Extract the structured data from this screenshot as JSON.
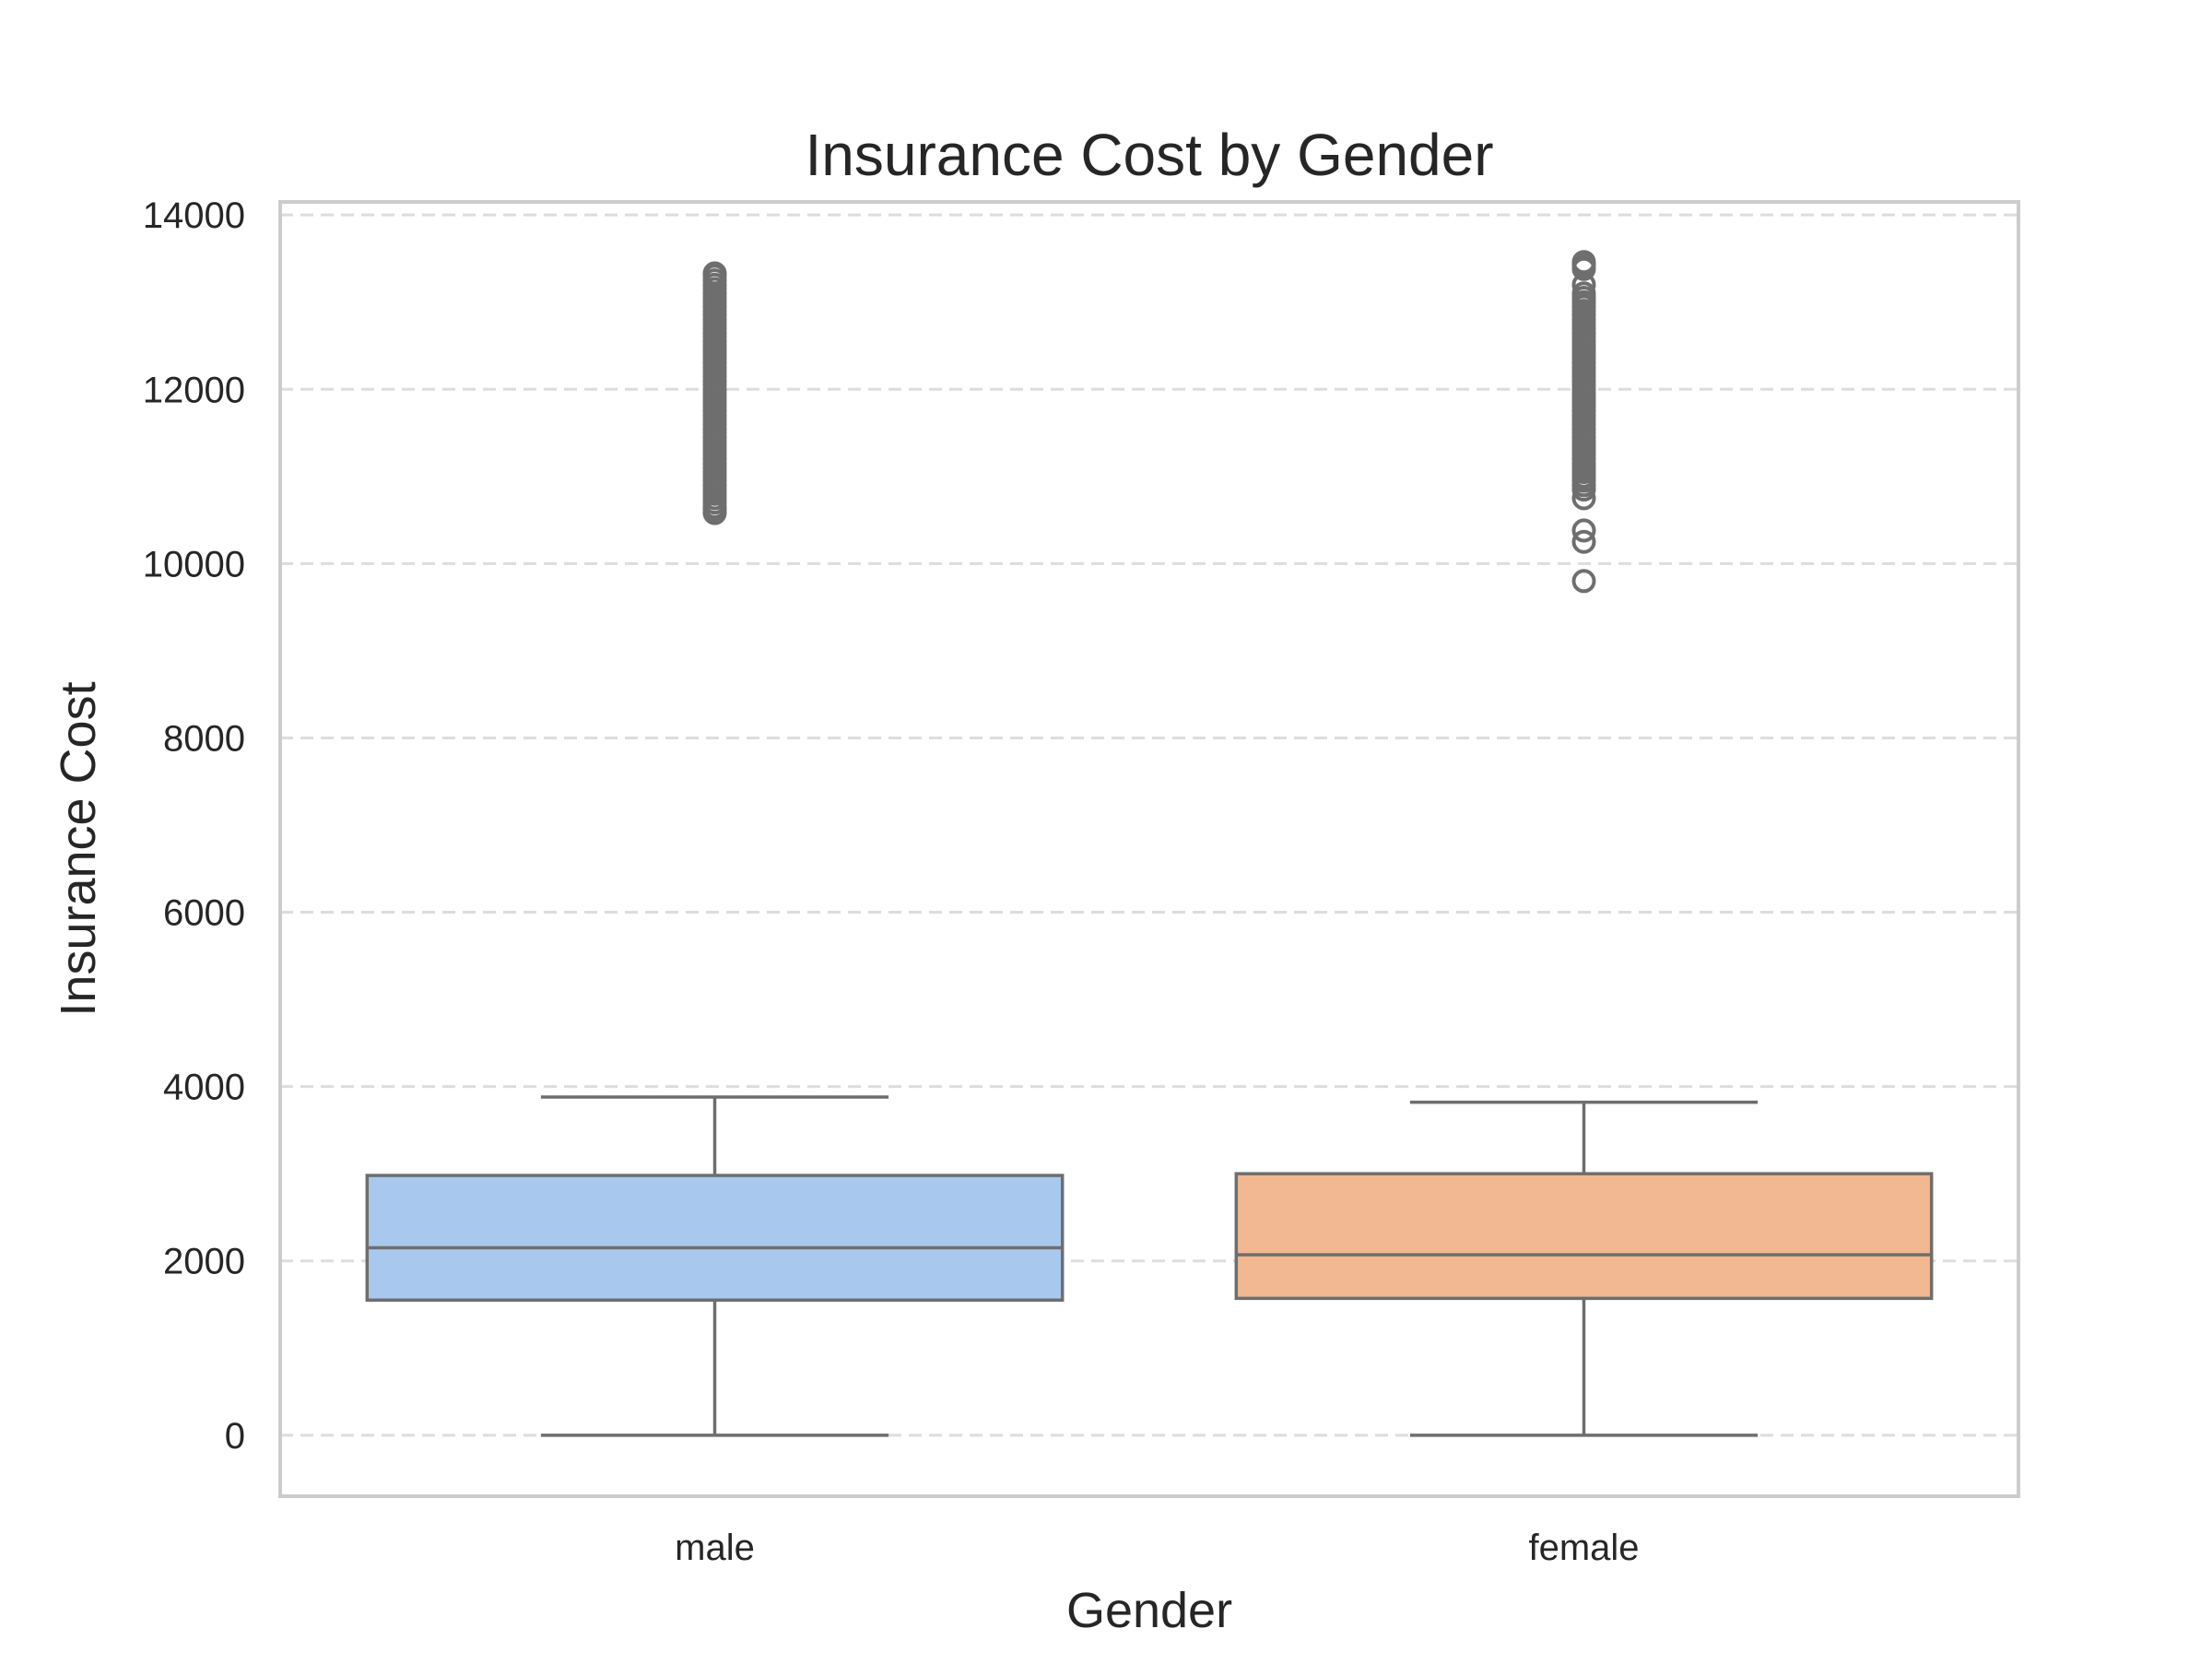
{
  "chart_data": {
    "type": "box",
    "title": "Insurance Cost by Gender",
    "xlabel": "Gender",
    "ylabel": "Insurance Cost",
    "categories": [
      "male",
      "female"
    ],
    "ylim": [
      -700,
      14150
    ],
    "yticks": [
      0,
      2000,
      4000,
      6000,
      8000,
      10000,
      12000,
      14000
    ],
    "grid": {
      "y": true,
      "x": false,
      "style": "dashed"
    },
    "legend": "none",
    "boxes": [
      {
        "category": "male",
        "whisker_low": 0,
        "q1": 1550,
        "median": 2150,
        "q3": 2980,
        "whisker_high": 3880,
        "color": "#a9c8ed",
        "outliers": [
          10580,
          10620,
          10650,
          10700,
          10750,
          10800,
          10850,
          10900,
          10950,
          11000,
          11050,
          11100,
          11150,
          11200,
          11250,
          11300,
          11350,
          11400,
          11450,
          11500,
          11550,
          11600,
          11650,
          11700,
          11750,
          11800,
          11850,
          11900,
          11950,
          12000,
          12050,
          12100,
          12150,
          12200,
          12250,
          12300,
          12350,
          12400,
          12450,
          12500,
          12550,
          12600,
          12650,
          12700,
          12750,
          12800,
          12850,
          12900,
          12950,
          13000,
          13050,
          13100,
          13150,
          13200,
          13250,
          13300,
          13330
        ]
      },
      {
        "category": "female",
        "whisker_low": 0,
        "q1": 1570,
        "median": 2070,
        "q3": 3000,
        "whisker_high": 3820,
        "color": "#f1b891",
        "outliers": [
          9800,
          10250,
          10380,
          10750,
          10850,
          10900,
          10950,
          11000,
          11050,
          11100,
          11150,
          11200,
          11250,
          11300,
          11350,
          11400,
          11450,
          11500,
          11550,
          11600,
          11650,
          11700,
          11750,
          11800,
          11850,
          11900,
          11950,
          12000,
          12050,
          12100,
          12150,
          12200,
          12250,
          12300,
          12350,
          12400,
          12450,
          12500,
          12550,
          12600,
          12650,
          12700,
          12750,
          12800,
          12850,
          12900,
          12950,
          13000,
          13050,
          13100,
          13200,
          13380,
          13420,
          13460
        ]
      }
    ],
    "colors": {
      "frame": "#cccccc",
      "grid": "#dddddd",
      "box_line": "#6e6e6e",
      "outlier": "#6e6e6e"
    }
  }
}
